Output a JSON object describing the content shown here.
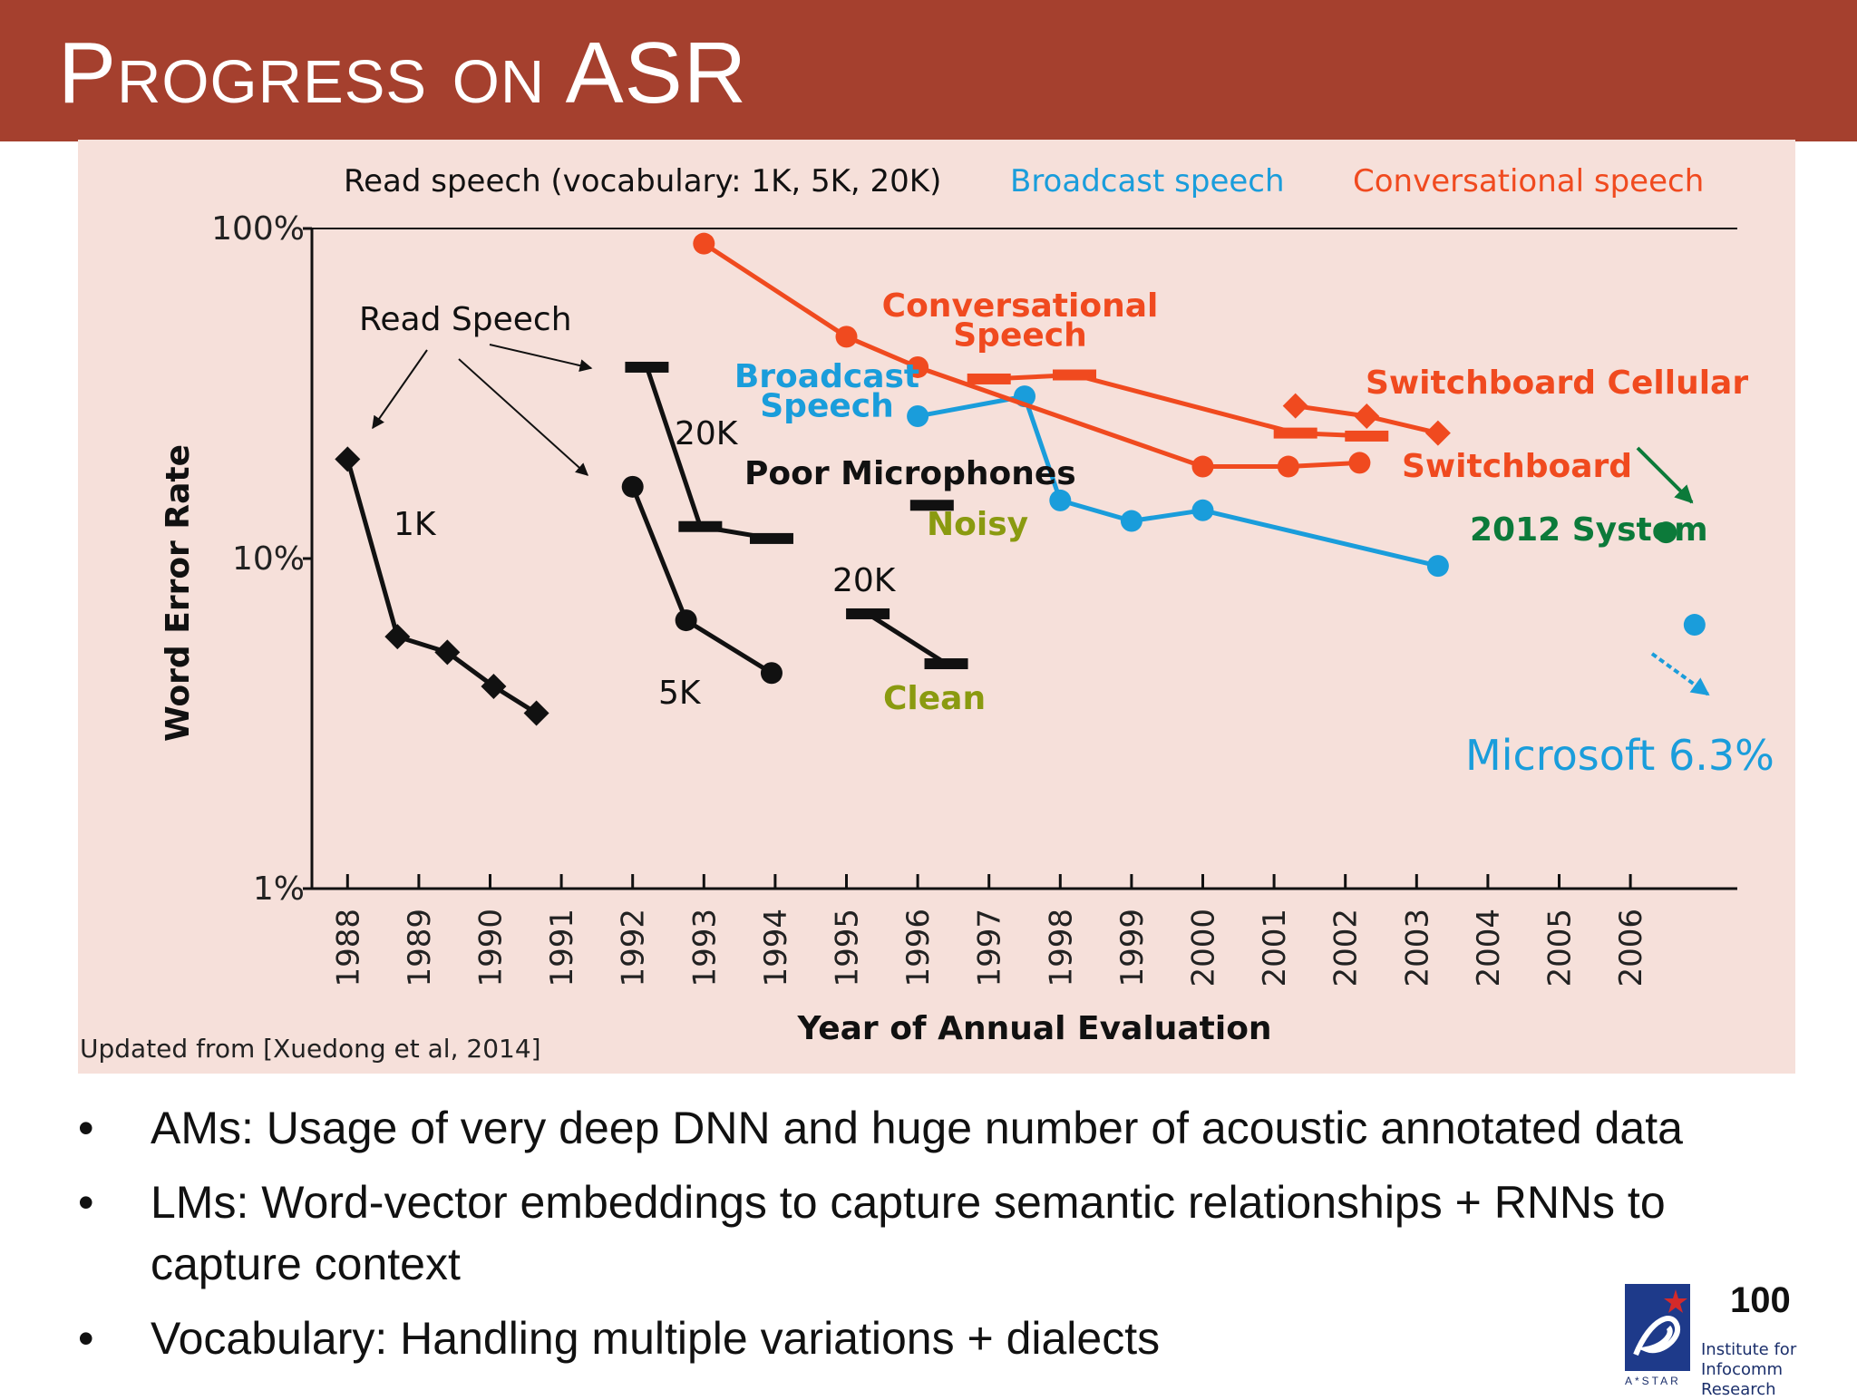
{
  "slide": {
    "title": "Progress on ASR",
    "page_number": "100",
    "source_note": "Updated from [Xuedong et al, 2014]",
    "bullets": [
      "AMs: Usage of  very deep DNN and huge number of acoustic annotated data",
      "LMs:  Word-vector embeddings to capture semantic relationships +  RNNs to capture context",
      "Vocabulary: Handling multiple variations + dialects"
    ],
    "logo": {
      "text_line1": "Institute for",
      "text_line2": "Infocomm Research",
      "brand": "A*STAR"
    }
  },
  "colors": {
    "title_bar": "#a5402e",
    "panel_bg": "#f6e0da",
    "read": "#111111",
    "broadcast": "#1a9ddb",
    "conversational": "#f04a1f",
    "system2012": "#0c7a3a",
    "clean_noisy": "#8a9a10"
  },
  "chart_data": {
    "type": "line",
    "xlabel": "Year of Annual Evaluation",
    "ylabel": "Word Error Rate",
    "yscale": "log",
    "ylim": [
      1,
      100
    ],
    "y_ticks": [
      "100%",
      "10%",
      "1%"
    ],
    "x_ticks": [
      "1988",
      "1989",
      "1990",
      "1991",
      "1992",
      "1993",
      "1994",
      "1995",
      "1996",
      "1997",
      "1998",
      "1999",
      "2000",
      "2001",
      "2002",
      "2003",
      "2004",
      "2005",
      "2006"
    ],
    "xlim": [
      1987.5,
      2007.5
    ],
    "legend": [
      {
        "label": "Read speech (vocabulary: 1K, 5K, 20K)",
        "color": "#111111"
      },
      {
        "label": "Broadcast speech",
        "color": "#1a9ddb"
      },
      {
        "label": "Conversational speech",
        "color": "#f04a1f"
      }
    ],
    "series": [
      {
        "label": "1K",
        "color": "#111111",
        "marker": "diamond",
        "x": [
          1988.0,
          1988.7,
          1989.4,
          1990.05,
          1990.65
        ],
        "y": [
          20,
          5.8,
          5.2,
          4.1,
          3.4
        ]
      },
      {
        "label": "5K",
        "color": "#111111",
        "marker": "circle",
        "x": [
          1992.0,
          1992.75,
          1993.95
        ],
        "y": [
          16.5,
          6.5,
          4.5
        ]
      },
      {
        "label": "20K",
        "color": "#111111",
        "marker": "dash",
        "x": [
          1992.2,
          1992.95,
          1993.95
        ],
        "y": [
          38,
          12.5,
          11.5
        ]
      },
      {
        "label": "20K",
        "color": "#111111",
        "marker": "dash",
        "x": [
          1995.3,
          1996.4
        ],
        "y": [
          6.8,
          4.8
        ]
      },
      {
        "label": "Noisy",
        "color": "#111111",
        "marker": "dash",
        "x": [
          1996.2
        ],
        "y": [
          14.5
        ]
      },
      {
        "label": "Broadcast Speech",
        "color": "#1a9ddb",
        "marker": "circle",
        "x": [
          1996.0,
          1997.5,
          1998.0,
          1999.0,
          2000.0,
          2003.3
        ],
        "y": [
          27,
          31,
          15,
          13,
          14,
          9.5
        ]
      },
      {
        "label": "Conversational Speech",
        "color": "#f04a1f",
        "marker": "circle",
        "x": [
          1993.0,
          1995.0,
          1996.0,
          2000.0,
          2001.2,
          2002.2
        ],
        "y": [
          90,
          47,
          38,
          19,
          19,
          19.5
        ]
      },
      {
        "label": "",
        "color": "#f04a1f",
        "marker": "dash",
        "x": [
          1997.0,
          1998.2,
          2001.3,
          2002.3
        ],
        "y": [
          35,
          36,
          24,
          23.5
        ]
      },
      {
        "label": "Switchboard Cellular",
        "color": "#f04a1f",
        "marker": "diamond",
        "x": [
          2001.3,
          2002.3,
          2003.3
        ],
        "y": [
          29,
          27,
          24
        ]
      },
      {
        "label": "2012 System",
        "color": "#0c7a3a",
        "marker": "circle",
        "x": [
          2006.5
        ],
        "y": [
          12
        ]
      },
      {
        "label": "Microsoft 6.3%",
        "color": "#1a9ddb",
        "marker": "circle",
        "x": [
          2006.9
        ],
        "y": [
          6.3
        ]
      }
    ],
    "annotations": [
      {
        "text": "Read Speech",
        "color": "#111111"
      },
      {
        "text": "1K",
        "color": "#111111"
      },
      {
        "text": "5K",
        "color": "#111111"
      },
      {
        "text": "20K",
        "color": "#111111"
      },
      {
        "text": "20K",
        "color": "#111111"
      },
      {
        "text": "Poor Microphones",
        "color": "#111111"
      },
      {
        "text": "Noisy",
        "color": "#8a9a10"
      },
      {
        "text": "Clean",
        "color": "#8a9a10"
      },
      {
        "text": "Broadcast Speech",
        "color": "#1a9ddb"
      },
      {
        "text": "Conversational Speech",
        "color": "#f04a1f"
      },
      {
        "text": "Switchboard Cellular",
        "color": "#f04a1f"
      },
      {
        "text": "Switchboard",
        "color": "#f04a1f"
      },
      {
        "text": "2012 System",
        "color": "#0c7a3a"
      },
      {
        "text": "Microsoft 6.3%",
        "color": "#1a9ddb"
      }
    ]
  }
}
